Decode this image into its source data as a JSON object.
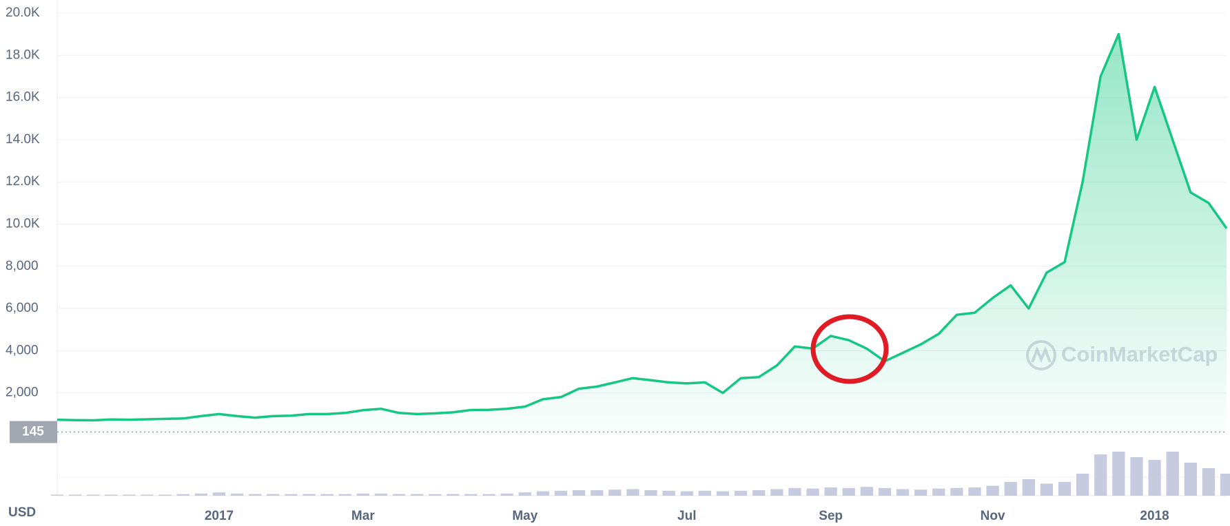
{
  "chart_data": {
    "type": "line",
    "categories": [
      null,
      null,
      null,
      null,
      null,
      null,
      null,
      null,
      null,
      "2017",
      null,
      null,
      null,
      null,
      null,
      null,
      null,
      "Mar",
      null,
      null,
      null,
      null,
      null,
      null,
      null,
      null,
      "May",
      null,
      null,
      null,
      null,
      null,
      null,
      null,
      null,
      "Jul",
      null,
      null,
      null,
      null,
      null,
      null,
      null,
      "Sep",
      null,
      null,
      null,
      null,
      null,
      null,
      null,
      null,
      "Nov",
      null,
      null,
      null,
      null,
      null,
      null,
      null,
      null,
      "2018",
      null,
      null,
      null,
      null
    ],
    "values": [
      730,
      710,
      700,
      740,
      730,
      750,
      770,
      790,
      900,
      1000,
      900,
      830,
      900,
      920,
      1000,
      1000,
      1050,
      1180,
      1250,
      1050,
      1000,
      1030,
      1080,
      1190,
      1200,
      1250,
      1350,
      1700,
      1800,
      2200,
      2300,
      2500,
      2700,
      2600,
      2500,
      2450,
      2500,
      2000,
      2700,
      2750,
      3300,
      4200,
      4100,
      4700,
      4500,
      4100,
      3500,
      3900,
      4300,
      4800,
      5700,
      5800,
      6500,
      7100,
      6000,
      7700,
      8200,
      12000,
      17000,
      19000,
      14000,
      16500,
      14000,
      11500,
      11000,
      9800
    ],
    "volume": [
      2,
      2,
      2,
      2,
      2,
      2,
      2,
      3,
      4,
      6,
      4,
      3,
      3,
      3,
      3,
      3,
      3,
      4,
      4,
      3,
      3,
      3,
      3,
      3,
      3,
      4,
      6,
      8,
      9,
      10,
      10,
      11,
      12,
      10,
      9,
      8,
      9,
      8,
      9,
      10,
      12,
      14,
      13,
      15,
      14,
      16,
      14,
      12,
      11,
      13,
      14,
      15,
      18,
      25,
      30,
      22,
      25,
      40,
      75,
      80,
      70,
      65,
      80,
      60,
      50,
      40
    ],
    "volume_lim": [
      0,
      100
    ],
    "color": "#16c784",
    "volume_color": "#c7cbe0",
    "ylim": [
      0,
      20000
    ],
    "yticks": [
      {
        "value": 2000,
        "label": "2,000"
      },
      {
        "value": 4000,
        "label": "4,000"
      },
      {
        "value": 6000,
        "label": "6,000"
      },
      {
        "value": 8000,
        "label": "8,000"
      },
      {
        "value": 10000,
        "label": "10.0K"
      },
      {
        "value": 12000,
        "label": "12.0K"
      },
      {
        "value": 14000,
        "label": "14.0K"
      },
      {
        "value": 16000,
        "label": "16.0K"
      },
      {
        "value": 18000,
        "label": "18.0K"
      },
      {
        "value": 20000,
        "label": "20.0K"
      }
    ],
    "grid": true,
    "current_price": 145,
    "currency": "USD",
    "watermark": "CoinMarketCap"
  }
}
